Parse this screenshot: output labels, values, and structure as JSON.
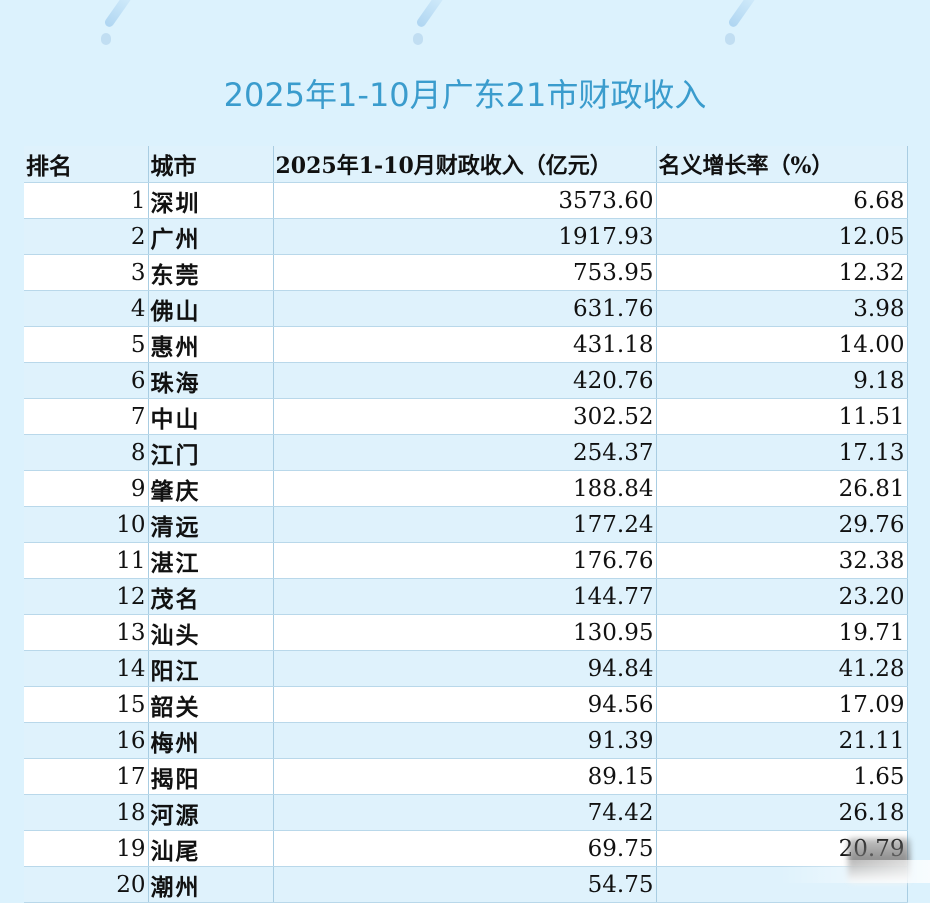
{
  "title": "2025年1-10月广东21市财政收入",
  "table": {
    "headers": {
      "rank": "排名",
      "city": "城市",
      "revenue": "2025年1-10月财政收入（亿元）",
      "growth": "名义增长率（%）"
    },
    "rows": [
      {
        "rank": "1",
        "city": "深圳",
        "revenue": "3573.60",
        "growth": "6.68"
      },
      {
        "rank": "2",
        "city": "广州",
        "revenue": "1917.93",
        "growth": "12.05"
      },
      {
        "rank": "3",
        "city": "东莞",
        "revenue": "753.95",
        "growth": "12.32"
      },
      {
        "rank": "4",
        "city": "佛山",
        "revenue": "631.76",
        "growth": "3.98"
      },
      {
        "rank": "5",
        "city": "惠州",
        "revenue": "431.18",
        "growth": "14.00"
      },
      {
        "rank": "6",
        "city": "珠海",
        "revenue": "420.76",
        "growth": "9.18"
      },
      {
        "rank": "7",
        "city": "中山",
        "revenue": "302.52",
        "growth": "11.51"
      },
      {
        "rank": "8",
        "city": "江门",
        "revenue": "254.37",
        "growth": "17.13"
      },
      {
        "rank": "9",
        "city": "肇庆",
        "revenue": "188.84",
        "growth": "26.81"
      },
      {
        "rank": "10",
        "city": "清远",
        "revenue": "177.24",
        "growth": "29.76"
      },
      {
        "rank": "11",
        "city": "湛江",
        "revenue": "176.76",
        "growth": "32.38"
      },
      {
        "rank": "12",
        "city": "茂名",
        "revenue": "144.77",
        "growth": "23.20"
      },
      {
        "rank": "13",
        "city": "汕头",
        "revenue": "130.95",
        "growth": "19.71"
      },
      {
        "rank": "14",
        "city": "阳江",
        "revenue": "94.84",
        "growth": "41.28"
      },
      {
        "rank": "15",
        "city": "韶关",
        "revenue": "94.56",
        "growth": "17.09"
      },
      {
        "rank": "16",
        "city": "梅州",
        "revenue": "91.39",
        "growth": "21.11"
      },
      {
        "rank": "17",
        "city": "揭阳",
        "revenue": "89.15",
        "growth": "1.65"
      },
      {
        "rank": "18",
        "city": "河源",
        "revenue": "74.42",
        "growth": "26.18"
      },
      {
        "rank": "19",
        "city": "汕尾",
        "revenue": "69.75",
        "growth": "20.79"
      },
      {
        "rank": "20",
        "city": "潮州",
        "revenue": "54.75",
        "growth": ""
      }
    ]
  },
  "colors": {
    "background": "#dcf2fd",
    "title": "#3a9ccd",
    "row_alt": "#dff2fc",
    "row_base": "#ffffff",
    "grid": "#a9cde2"
  }
}
